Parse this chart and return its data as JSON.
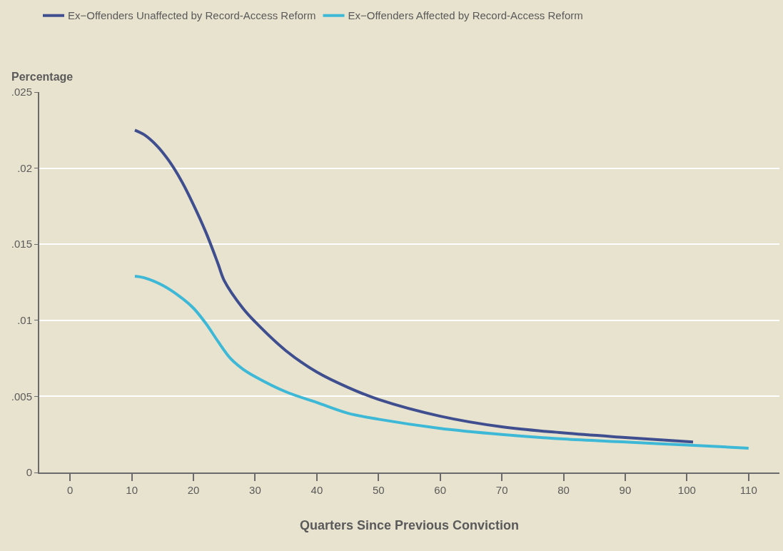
{
  "chart_data": {
    "type": "line",
    "xlabel": "Quarters Since Previous Conviction",
    "ylabel": "Percentage",
    "xlim": [
      -5,
      115
    ],
    "xticks": [
      0,
      10,
      20,
      30,
      40,
      50,
      60,
      70,
      80,
      90,
      100,
      110
    ],
    "ylim": [
      0,
      0.025
    ],
    "yticks": [
      {
        "value": 0,
        "label": "0"
      },
      {
        "value": 0.005,
        "label": ".005"
      },
      {
        "value": 0.01,
        "label": ".01"
      },
      {
        "value": 0.015,
        "label": ".015"
      },
      {
        "value": 0.02,
        "label": ".02"
      },
      {
        "value": 0.025,
        "label": ".025"
      }
    ],
    "grid": "y",
    "legend": "top left",
    "line_style": "solid",
    "marker": "none",
    "series": [
      {
        "name": "Ex−Offenders Unaffected by Record-Access Reform",
        "color": "#3f4e8f",
        "x": [
          10.5,
          12,
          14,
          16,
          18,
          20,
          22,
          24,
          25,
          28,
          30,
          35,
          40,
          45,
          50,
          60,
          70,
          80,
          90,
          101
        ],
        "values": [
          0.0225,
          0.0222,
          0.0215,
          0.0205,
          0.0192,
          0.0176,
          0.0158,
          0.0137,
          0.0126,
          0.0108,
          0.0099,
          0.008,
          0.0066,
          0.0056,
          0.0048,
          0.0037,
          0.003,
          0.0026,
          0.0023,
          0.002
        ]
      },
      {
        "name": "Ex−Offenders Affected by Record-Access Reform",
        "color": "#3db8d6",
        "x": [
          10.5,
          12,
          15,
          18,
          20,
          22,
          24,
          26,
          28,
          30,
          35,
          40,
          45,
          50,
          60,
          70,
          80,
          90,
          100,
          110
        ],
        "values": [
          0.0129,
          0.0128,
          0.0123,
          0.0115,
          0.0108,
          0.0098,
          0.0086,
          0.0075,
          0.0068,
          0.0063,
          0.0053,
          0.0046,
          0.0039,
          0.0035,
          0.0029,
          0.0025,
          0.0022,
          0.002,
          0.0018,
          0.0016
        ]
      }
    ]
  }
}
